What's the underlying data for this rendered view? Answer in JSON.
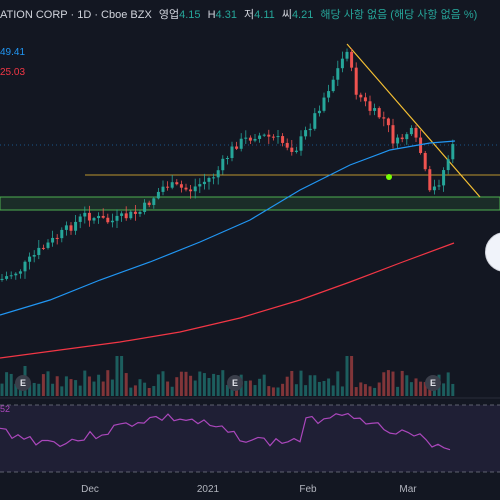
{
  "header": {
    "title": "ATION CORP · 1D · Cboe BZX",
    "open_label": "영업",
    "open_value": "4.15",
    "high_label": "H",
    "high_value": "4.31",
    "low_label": "저",
    "low_value": "4.11",
    "close_label": "씨",
    "close_value": "4.21",
    "change_text": "해당 사항 없음 (해당 사항 없음 %)"
  },
  "indicators": {
    "ma_fast_value": "49.41",
    "ma_slow_value": "25.03",
    "rsi_value": "52"
  },
  "xaxis": {
    "labels": [
      "Dec",
      "2021",
      "Feb",
      "Mar"
    ]
  },
  "earnings": {
    "marker": "E"
  },
  "colors": {
    "background": "#131722",
    "up": "#26a69a",
    "down": "#ef5350",
    "ma_fast": "#2196f3",
    "ma_slow": "#f23645",
    "trendline": "#f5c033",
    "rsi": "#ab47bc",
    "support_box": "#4caf50"
  }
}
